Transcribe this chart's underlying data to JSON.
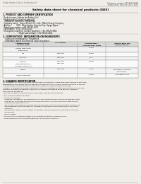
{
  "bg_color": "#f0ede8",
  "header_left": "Product Name: Lithium Ion Battery Cell",
  "header_right_line1": "Substance number: 999-999-99999",
  "header_right_line2": "Established / Revision: Dec.7.2010",
  "title": "Safety data sheet for chemical products (SDS)",
  "section1_title": "1. PRODUCT AND COMPANY IDENTIFICATION",
  "section1_lines": [
    "· Product name: Lithium Ion Battery Cell",
    "· Product code: Cylindrical-type cell",
    "   (INR18650, INR18650, INR18650A)",
    "· Company name:   Sanyo Electric Co., Ltd.,  Mobile Energy Company",
    "· Address:         2001  Kamishinden, Sumoto-City, Hyogo, Japan",
    "· Telephone number:   +81-799-26-4111",
    "· Fax number:  +81-799-26-4120",
    "· Emergency telephone number (daytime): +81-799-26-3962",
    "                              (Night and holiday): +81-799-26-4101"
  ],
  "section2_title": "2. COMPOSITION / INFORMATION ON INGREDIENTS",
  "section2_intro": "· Substance or preparation: Preparation",
  "section2_sub": "· Information about the chemical nature of product:",
  "table_headers": [
    "Chemical name /\nGeneral name",
    "CAS number",
    "Concentration /\nConcentration range",
    "Classification and\nhazard labeling"
  ],
  "table_rows": [
    [
      "Lithium cobalt oxide\n(LiMnCoNiO2)",
      "-",
      "30-60%",
      "-"
    ],
    [
      "Iron",
      "7439-89-6",
      "15-25%",
      "-"
    ],
    [
      "Aluminum",
      "7429-90-5",
      "2-5%",
      "-"
    ],
    [
      "Graphite\n(Flake of graphite-1)\n(All flake of graphite-2)",
      "7782-42-5\n7782-42-5",
      "10-25%",
      "-"
    ],
    [
      "Copper",
      "7440-50-8",
      "5-15%",
      "Sensitization of the skin\ngroup R43.2"
    ],
    [
      "Organic electrolyte",
      "-",
      "10-20%",
      "Inflammable liquid"
    ]
  ],
  "section3_title": "3. HAZARDS IDENTIFICATION",
  "section3_text": [
    "For this battery cell, chemical substances are stored in a hermetically sealed metal case, designed to withstand",
    "temperatures during electro-chemical reactions during normal use. As a result, during normal use, there is no",
    "physical danger of ignition or explosion and therein danger of hazardous materials leakage.",
    "  However, if exposed to a fire, added mechanical shocks, decomposed, written electric without any measure,",
    "the gas inside cannot be operated. The battery cell case will be breached at fire-extreme, hazardous",
    "materials may be released.",
    "  Moreover, if heated strongly by the surrounding fire, some gas may be emitted.",
    "",
    "· Most important hazard and effects:",
    "  Human health effects:",
    "    Inhalation: The release of the electrolyte has an anesthesia action and stimulates in respiratory tract.",
    "    Skin contact: The release of the electrolyte stimulates a skin. The electrolyte skin contact causes a",
    "    sore and stimulation on the skin.",
    "    Eye contact: The release of the electrolyte stimulates eyes. The electrolyte eye contact causes a sore",
    "    and stimulation on the eye. Especially, a substance that causes a strong inflammation of the eye is",
    "    contained.",
    "    Environmental effects: Since a battery cell remains in the environment, do not throw out it into the",
    "    environment.",
    "",
    "· Specific hazards:",
    "  If the electrolyte contacts with water, it will generate detrimental hydrogen fluoride.",
    "  Since the used electrolyte is inflammable liquid, do not bring close to fire."
  ],
  "footer_line": true
}
